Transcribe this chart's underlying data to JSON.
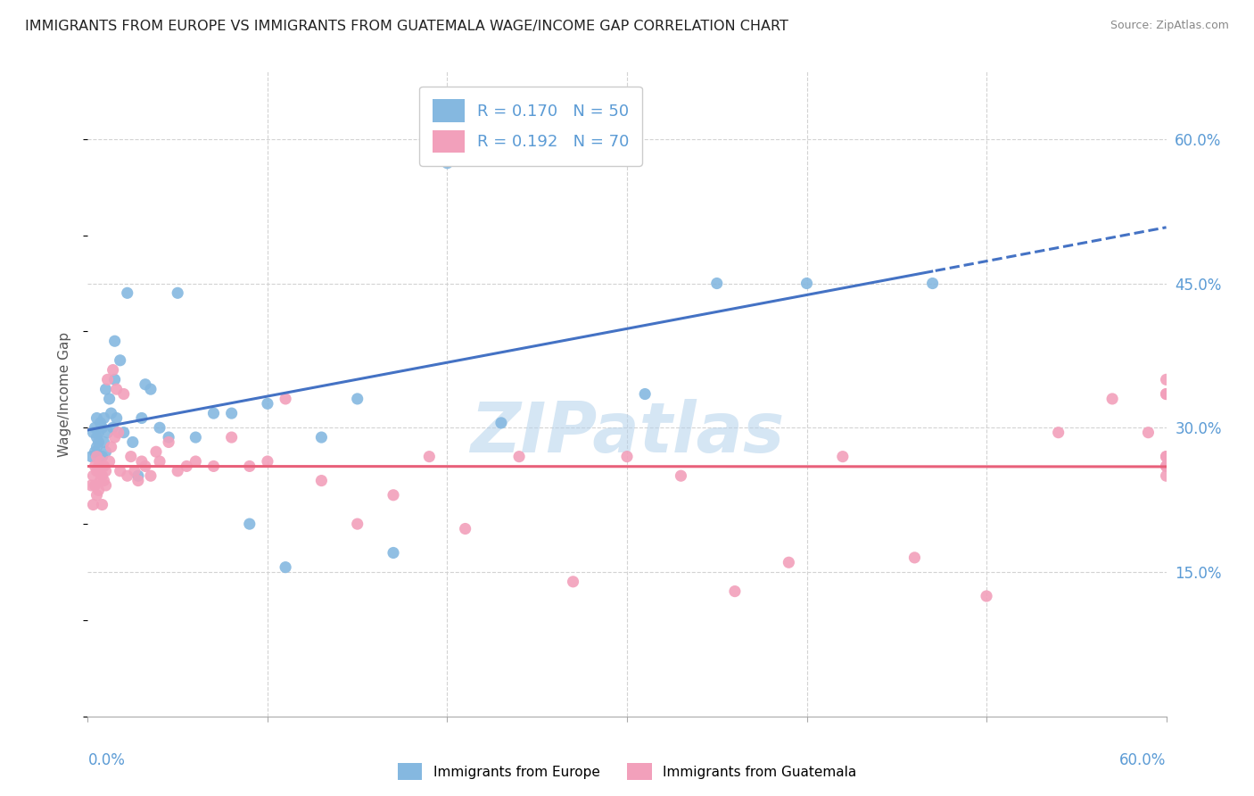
{
  "title": "IMMIGRANTS FROM EUROPE VS IMMIGRANTS FROM GUATEMALA WAGE/INCOME GAP CORRELATION CHART",
  "source": "Source: ZipAtlas.com",
  "ylabel": "Wage/Income Gap",
  "europe_color": "#85b8e0",
  "guatemala_color": "#f2a0bb",
  "europe_line_color": "#4472c4",
  "guatemala_line_color": "#e8607a",
  "r_europe": 0.17,
  "r_guatemala": 0.192,
  "n_europe": 50,
  "n_guatemala": 70,
  "bg_color": "#ffffff",
  "grid_color": "#d3d3d3",
  "watermark": "ZIPatlas",
  "watermark_color_r": 180,
  "watermark_color_g": 210,
  "watermark_color_b": 235,
  "xlim": [
    0.0,
    0.6
  ],
  "ylim": [
    0.0,
    0.67
  ],
  "ytick_vals": [
    0.15,
    0.3,
    0.45,
    0.6
  ],
  "europe_x": [
    0.002,
    0.003,
    0.004,
    0.004,
    0.005,
    0.005,
    0.005,
    0.006,
    0.006,
    0.007,
    0.008,
    0.008,
    0.009,
    0.009,
    0.01,
    0.01,
    0.011,
    0.012,
    0.013,
    0.014,
    0.015,
    0.015,
    0.016,
    0.018,
    0.02,
    0.022,
    0.025,
    0.028,
    0.03,
    0.032,
    0.035,
    0.04,
    0.045,
    0.05,
    0.06,
    0.07,
    0.08,
    0.09,
    0.1,
    0.11,
    0.13,
    0.15,
    0.17,
    0.2,
    0.23,
    0.27,
    0.31,
    0.35,
    0.4,
    0.47
  ],
  "europe_y": [
    0.27,
    0.295,
    0.275,
    0.3,
    0.28,
    0.29,
    0.31,
    0.285,
    0.295,
    0.305,
    0.27,
    0.3,
    0.285,
    0.31,
    0.275,
    0.34,
    0.295,
    0.33,
    0.315,
    0.3,
    0.35,
    0.39,
    0.31,
    0.37,
    0.295,
    0.44,
    0.285,
    0.25,
    0.31,
    0.345,
    0.34,
    0.3,
    0.29,
    0.44,
    0.29,
    0.315,
    0.315,
    0.2,
    0.325,
    0.155,
    0.29,
    0.33,
    0.17,
    0.575,
    0.305,
    0.595,
    0.335,
    0.45,
    0.45,
    0.45
  ],
  "guatemala_x": [
    0.002,
    0.003,
    0.003,
    0.004,
    0.004,
    0.005,
    0.005,
    0.005,
    0.006,
    0.006,
    0.007,
    0.007,
    0.008,
    0.008,
    0.009,
    0.009,
    0.01,
    0.01,
    0.011,
    0.012,
    0.013,
    0.014,
    0.015,
    0.016,
    0.017,
    0.018,
    0.02,
    0.022,
    0.024,
    0.026,
    0.028,
    0.03,
    0.032,
    0.035,
    0.038,
    0.04,
    0.045,
    0.05,
    0.055,
    0.06,
    0.07,
    0.08,
    0.09,
    0.1,
    0.11,
    0.13,
    0.15,
    0.17,
    0.19,
    0.21,
    0.24,
    0.27,
    0.3,
    0.33,
    0.36,
    0.39,
    0.42,
    0.46,
    0.5,
    0.54,
    0.57,
    0.59,
    0.6,
    0.6,
    0.6,
    0.6,
    0.6,
    0.6,
    0.6,
    0.6
  ],
  "guatemala_y": [
    0.24,
    0.25,
    0.22,
    0.24,
    0.26,
    0.23,
    0.255,
    0.27,
    0.235,
    0.26,
    0.245,
    0.265,
    0.22,
    0.25,
    0.245,
    0.26,
    0.24,
    0.255,
    0.35,
    0.265,
    0.28,
    0.36,
    0.29,
    0.34,
    0.295,
    0.255,
    0.335,
    0.25,
    0.27,
    0.255,
    0.245,
    0.265,
    0.26,
    0.25,
    0.275,
    0.265,
    0.285,
    0.255,
    0.26,
    0.265,
    0.26,
    0.29,
    0.26,
    0.265,
    0.33,
    0.245,
    0.2,
    0.23,
    0.27,
    0.195,
    0.27,
    0.14,
    0.27,
    0.25,
    0.13,
    0.16,
    0.27,
    0.165,
    0.125,
    0.295,
    0.33,
    0.295,
    0.335,
    0.35,
    0.26,
    0.27,
    0.26,
    0.25,
    0.27,
    0.335
  ]
}
